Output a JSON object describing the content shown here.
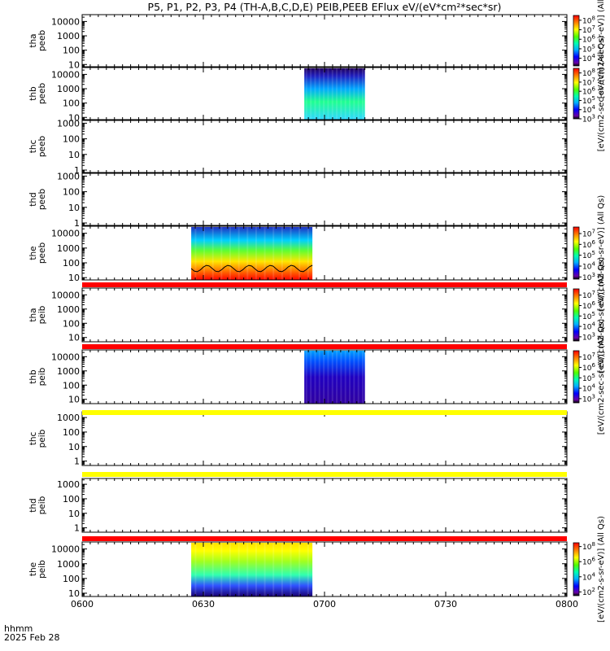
{
  "chart_data": {
    "type": "heatmap",
    "title": "P5, P1, P2, P3, P4 (TH-A,B,C,D,E) PEIB,PEEB EFlux eV/(eV*cm²*sec*sr)",
    "xaxis": {
      "ticks": [
        "0600",
        "0630",
        "0700",
        "0730",
        "0800"
      ],
      "range_min": [
        0,
        120
      ],
      "corner_label": "hhmm",
      "date_label": "2025 Feb 28"
    },
    "panels": [
      {
        "probe": "tha",
        "species": "peeb",
        "ylabel": [
          "tha",
          "peeb"
        ],
        "ylim": [
          7,
          30000
        ],
        "yticks": [
          10,
          100,
          1000,
          10000
        ],
        "data_intervals_min": [],
        "colorbar": {
          "exponents": [
            4,
            5,
            6,
            7,
            8
          ],
          "range_exp": [
            3.2,
            8.5
          ],
          "label": "[eV/(cm2-sec-sr-eV)] (All Qs)"
        }
      },
      {
        "probe": "thb",
        "species": "peeb",
        "ylabel": [
          "thb",
          "peeb"
        ],
        "ylim": [
          7,
          30000
        ],
        "yticks": [
          10,
          100,
          1000,
          10000
        ],
        "data_intervals_min": [
          [
            55,
            70
          ]
        ],
        "colorbar": {
          "exponents": [
            3,
            4,
            5,
            6,
            7,
            8
          ],
          "range_exp": [
            3,
            8.5
          ],
          "label": "[eV/(cm2-sec-sr-eV)] (All Qs)"
        }
      },
      {
        "probe": "thc",
        "species": "peeb",
        "ylabel": [
          "thc",
          "peeb"
        ],
        "ylim": [
          0.7,
          1500
        ],
        "yticks": [
          1,
          10,
          100,
          1000
        ],
        "data_intervals_min": [],
        "colorbar": null
      },
      {
        "probe": "thd",
        "species": "peeb",
        "ylabel": [
          "thd",
          "peeb"
        ],
        "ylim": [
          0.7,
          1500
        ],
        "yticks": [
          1,
          10,
          100,
          1000
        ],
        "data_intervals_min": [],
        "colorbar": null
      },
      {
        "probe": "the",
        "species": "peeb",
        "ylabel": [
          "the",
          "peeb"
        ],
        "ylim": [
          7,
          30000
        ],
        "yticks": [
          10,
          100,
          1000,
          10000
        ],
        "data_intervals_min": [
          [
            27,
            57
          ]
        ],
        "colorbar": {
          "exponents": [
            3,
            4,
            5,
            6,
            7
          ],
          "range_exp": [
            2.8,
            7.6
          ],
          "label": "[eV/(cm2-sec-sr-eV)] (All Qs)"
        }
      },
      {
        "probe": "tha",
        "species": "peib",
        "ylabel": [
          "tha",
          "peib"
        ],
        "ylim": [
          5,
          30000
        ],
        "yticks": [
          10,
          100,
          1000,
          10000
        ],
        "data_intervals_min": [],
        "colorbar": {
          "exponents": [
            3,
            4,
            5,
            6,
            7
          ],
          "range_exp": [
            2.6,
            7.6
          ],
          "label": "[eV/(cm2-sec-sr-eV)] (All Qs)"
        }
      },
      {
        "probe": "thb",
        "species": "peib",
        "ylabel": [
          "thb",
          "peib"
        ],
        "ylim": [
          5,
          30000
        ],
        "yticks": [
          10,
          100,
          1000,
          10000
        ],
        "data_intervals_min": [
          [
            55,
            70
          ]
        ],
        "colorbar": {
          "exponents": [
            3,
            4,
            5,
            6,
            7
          ],
          "range_exp": [
            2.6,
            7.6
          ],
          "label": "[eV/(cm2-sec-sr-eV)] (All Qs)"
        }
      },
      {
        "probe": "thc",
        "species": "peib",
        "ylabel": [
          "thc",
          "peib"
        ],
        "ylim": [
          0.5,
          2500
        ],
        "yticks": [
          1,
          10,
          100,
          1000
        ],
        "data_intervals_min": [],
        "colorbar": null
      },
      {
        "probe": "thd",
        "species": "peib",
        "ylabel": [
          "thd",
          "peib"
        ],
        "ylim": [
          0.5,
          2500
        ],
        "yticks": [
          1,
          10,
          100,
          1000
        ],
        "data_intervals_min": [],
        "colorbar": null
      },
      {
        "probe": "the",
        "species": "peib",
        "ylabel": [
          "the",
          "peib"
        ],
        "ylim": [
          6,
          30000
        ],
        "yticks": [
          10,
          100,
          1000,
          10000
        ],
        "data_intervals_min": [
          [
            27,
            57
          ]
        ],
        "colorbar": {
          "exponents": [
            2,
            4,
            6,
            8
          ],
          "range_exp": [
            1.5,
            8.5
          ],
          "label": "[eV/(cm2-s-sr-eV)] (All Qs)"
        }
      }
    ],
    "flag_bars": [
      {
        "after_panel": 4,
        "color": "#ff0000"
      },
      {
        "after_panel": 5,
        "color": "#ff0000"
      },
      {
        "after_panel": 6,
        "color": "#ffff00"
      },
      {
        "after_panel": 7,
        "color": "#ffff00"
      },
      {
        "after_panel": 8,
        "color": "#ff0000"
      }
    ],
    "colors": {
      "frame": "#000000",
      "red_bar": "#ff0000",
      "yellow_bar": "#ffff00"
    }
  }
}
